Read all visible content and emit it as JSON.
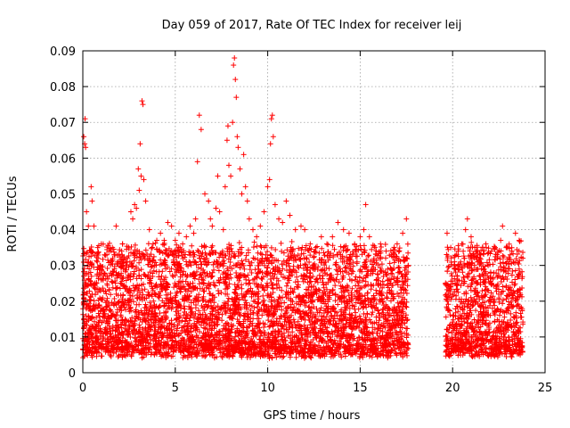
{
  "chart_data": {
    "type": "scatter",
    "title": "Day 059 of 2017, Rate Of TEC Index for receiver leij",
    "xlabel": "GPS time / hours",
    "ylabel": "ROTI / TECUs",
    "xlim": [
      0,
      25
    ],
    "ylim": [
      0,
      0.09
    ],
    "xticks": [
      0,
      5,
      10,
      15,
      20,
      25
    ],
    "yticks": [
      0,
      0.01,
      0.02,
      0.03,
      0.04,
      0.05,
      0.06,
      0.07,
      0.08,
      0.09
    ],
    "xtick_labels": [
      "0",
      "5",
      "10",
      "15",
      "20",
      "25"
    ],
    "ytick_labels": [
      "0",
      "0.01",
      "0.02",
      "0.03",
      "0.04",
      "0.05",
      "0.06",
      "0.07",
      "0.08",
      "0.09"
    ],
    "grid": true,
    "marker": "+",
    "color": "#ff0000",
    "series": [
      {
        "values_note_free": true,
        "points": [
          [
            0.05,
            0.066
          ],
          [
            0.1,
            0.064
          ],
          [
            0.12,
            0.071
          ],
          [
            0.15,
            0.063
          ],
          [
            0.2,
            0.045
          ],
          [
            0.3,
            0.041
          ],
          [
            0.45,
            0.052
          ],
          [
            0.5,
            0.048
          ],
          [
            0.6,
            0.041
          ],
          [
            0.8,
            0.035
          ],
          [
            1.0,
            0.036
          ],
          [
            1.3,
            0.033
          ],
          [
            1.6,
            0.035
          ],
          [
            1.8,
            0.041
          ],
          [
            2.1,
            0.034
          ],
          [
            2.4,
            0.031
          ],
          [
            2.6,
            0.045
          ],
          [
            2.7,
            0.043
          ],
          [
            2.8,
            0.047
          ],
          [
            2.9,
            0.046
          ],
          [
            3.0,
            0.057
          ],
          [
            3.05,
            0.051
          ],
          [
            3.1,
            0.064
          ],
          [
            3.15,
            0.055
          ],
          [
            3.2,
            0.076
          ],
          [
            3.25,
            0.075
          ],
          [
            3.3,
            0.054
          ],
          [
            3.4,
            0.048
          ],
          [
            3.6,
            0.04
          ],
          [
            3.8,
            0.036
          ],
          [
            4.0,
            0.037
          ],
          [
            4.2,
            0.039
          ],
          [
            4.4,
            0.037
          ],
          [
            4.6,
            0.042
          ],
          [
            4.8,
            0.041
          ],
          [
            5.0,
            0.037
          ],
          [
            5.2,
            0.039
          ],
          [
            5.4,
            0.036
          ],
          [
            5.6,
            0.038
          ],
          [
            5.8,
            0.041
          ],
          [
            6.0,
            0.039
          ],
          [
            6.1,
            0.043
          ],
          [
            6.2,
            0.059
          ],
          [
            6.3,
            0.072
          ],
          [
            6.4,
            0.068
          ],
          [
            6.6,
            0.05
          ],
          [
            6.8,
            0.048
          ],
          [
            6.9,
            0.043
          ],
          [
            7.0,
            0.041
          ],
          [
            7.2,
            0.046
          ],
          [
            7.3,
            0.055
          ],
          [
            7.4,
            0.045
          ],
          [
            7.6,
            0.04
          ],
          [
            7.7,
            0.052
          ],
          [
            7.8,
            0.065
          ],
          [
            7.85,
            0.069
          ],
          [
            7.9,
            0.058
          ],
          [
            8.0,
            0.055
          ],
          [
            8.1,
            0.07
          ],
          [
            8.15,
            0.086
          ],
          [
            8.2,
            0.088
          ],
          [
            8.25,
            0.082
          ],
          [
            8.3,
            0.077
          ],
          [
            8.35,
            0.066
          ],
          [
            8.4,
            0.063
          ],
          [
            8.5,
            0.057
          ],
          [
            8.6,
            0.05
          ],
          [
            8.7,
            0.061
          ],
          [
            8.8,
            0.052
          ],
          [
            8.9,
            0.048
          ],
          [
            9.0,
            0.043
          ],
          [
            9.2,
            0.04
          ],
          [
            9.4,
            0.038
          ],
          [
            9.6,
            0.041
          ],
          [
            9.8,
            0.045
          ],
          [
            10.0,
            0.052
          ],
          [
            10.1,
            0.054
          ],
          [
            10.15,
            0.064
          ],
          [
            10.2,
            0.071
          ],
          [
            10.25,
            0.072
          ],
          [
            10.3,
            0.066
          ],
          [
            10.4,
            0.047
          ],
          [
            10.6,
            0.043
          ],
          [
            10.8,
            0.042
          ],
          [
            11.0,
            0.048
          ],
          [
            11.2,
            0.044
          ],
          [
            11.5,
            0.04
          ],
          [
            11.8,
            0.041
          ],
          [
            12.0,
            0.04
          ],
          [
            12.3,
            0.036
          ],
          [
            12.6,
            0.035
          ],
          [
            12.9,
            0.038
          ],
          [
            13.2,
            0.036
          ],
          [
            13.5,
            0.038
          ],
          [
            13.8,
            0.042
          ],
          [
            14.1,
            0.04
          ],
          [
            14.4,
            0.039
          ],
          [
            14.7,
            0.036
          ],
          [
            15.0,
            0.038
          ],
          [
            15.2,
            0.04
          ],
          [
            15.3,
            0.047
          ],
          [
            15.5,
            0.038
          ],
          [
            15.8,
            0.035
          ],
          [
            16.1,
            0.036
          ],
          [
            16.4,
            0.034
          ],
          [
            16.7,
            0.033
          ],
          [
            17.0,
            0.036
          ],
          [
            17.3,
            0.039
          ],
          [
            17.5,
            0.043
          ],
          [
            17.6,
            0.03
          ],
          [
            19.7,
            0.039
          ],
          [
            19.9,
            0.035
          ],
          [
            20.1,
            0.031
          ],
          [
            20.3,
            0.034
          ],
          [
            20.5,
            0.036
          ],
          [
            20.7,
            0.04
          ],
          [
            20.8,
            0.043
          ],
          [
            21.0,
            0.038
          ],
          [
            21.2,
            0.035
          ],
          [
            21.5,
            0.033
          ],
          [
            21.8,
            0.036
          ],
          [
            22.1,
            0.034
          ],
          [
            22.4,
            0.033
          ],
          [
            22.6,
            0.037
          ],
          [
            22.7,
            0.041
          ],
          [
            22.9,
            0.035
          ],
          [
            23.2,
            0.034
          ],
          [
            23.4,
            0.039
          ],
          [
            23.6,
            0.037
          ],
          [
            23.8,
            0.032
          ]
        ]
      }
    ]
  }
}
